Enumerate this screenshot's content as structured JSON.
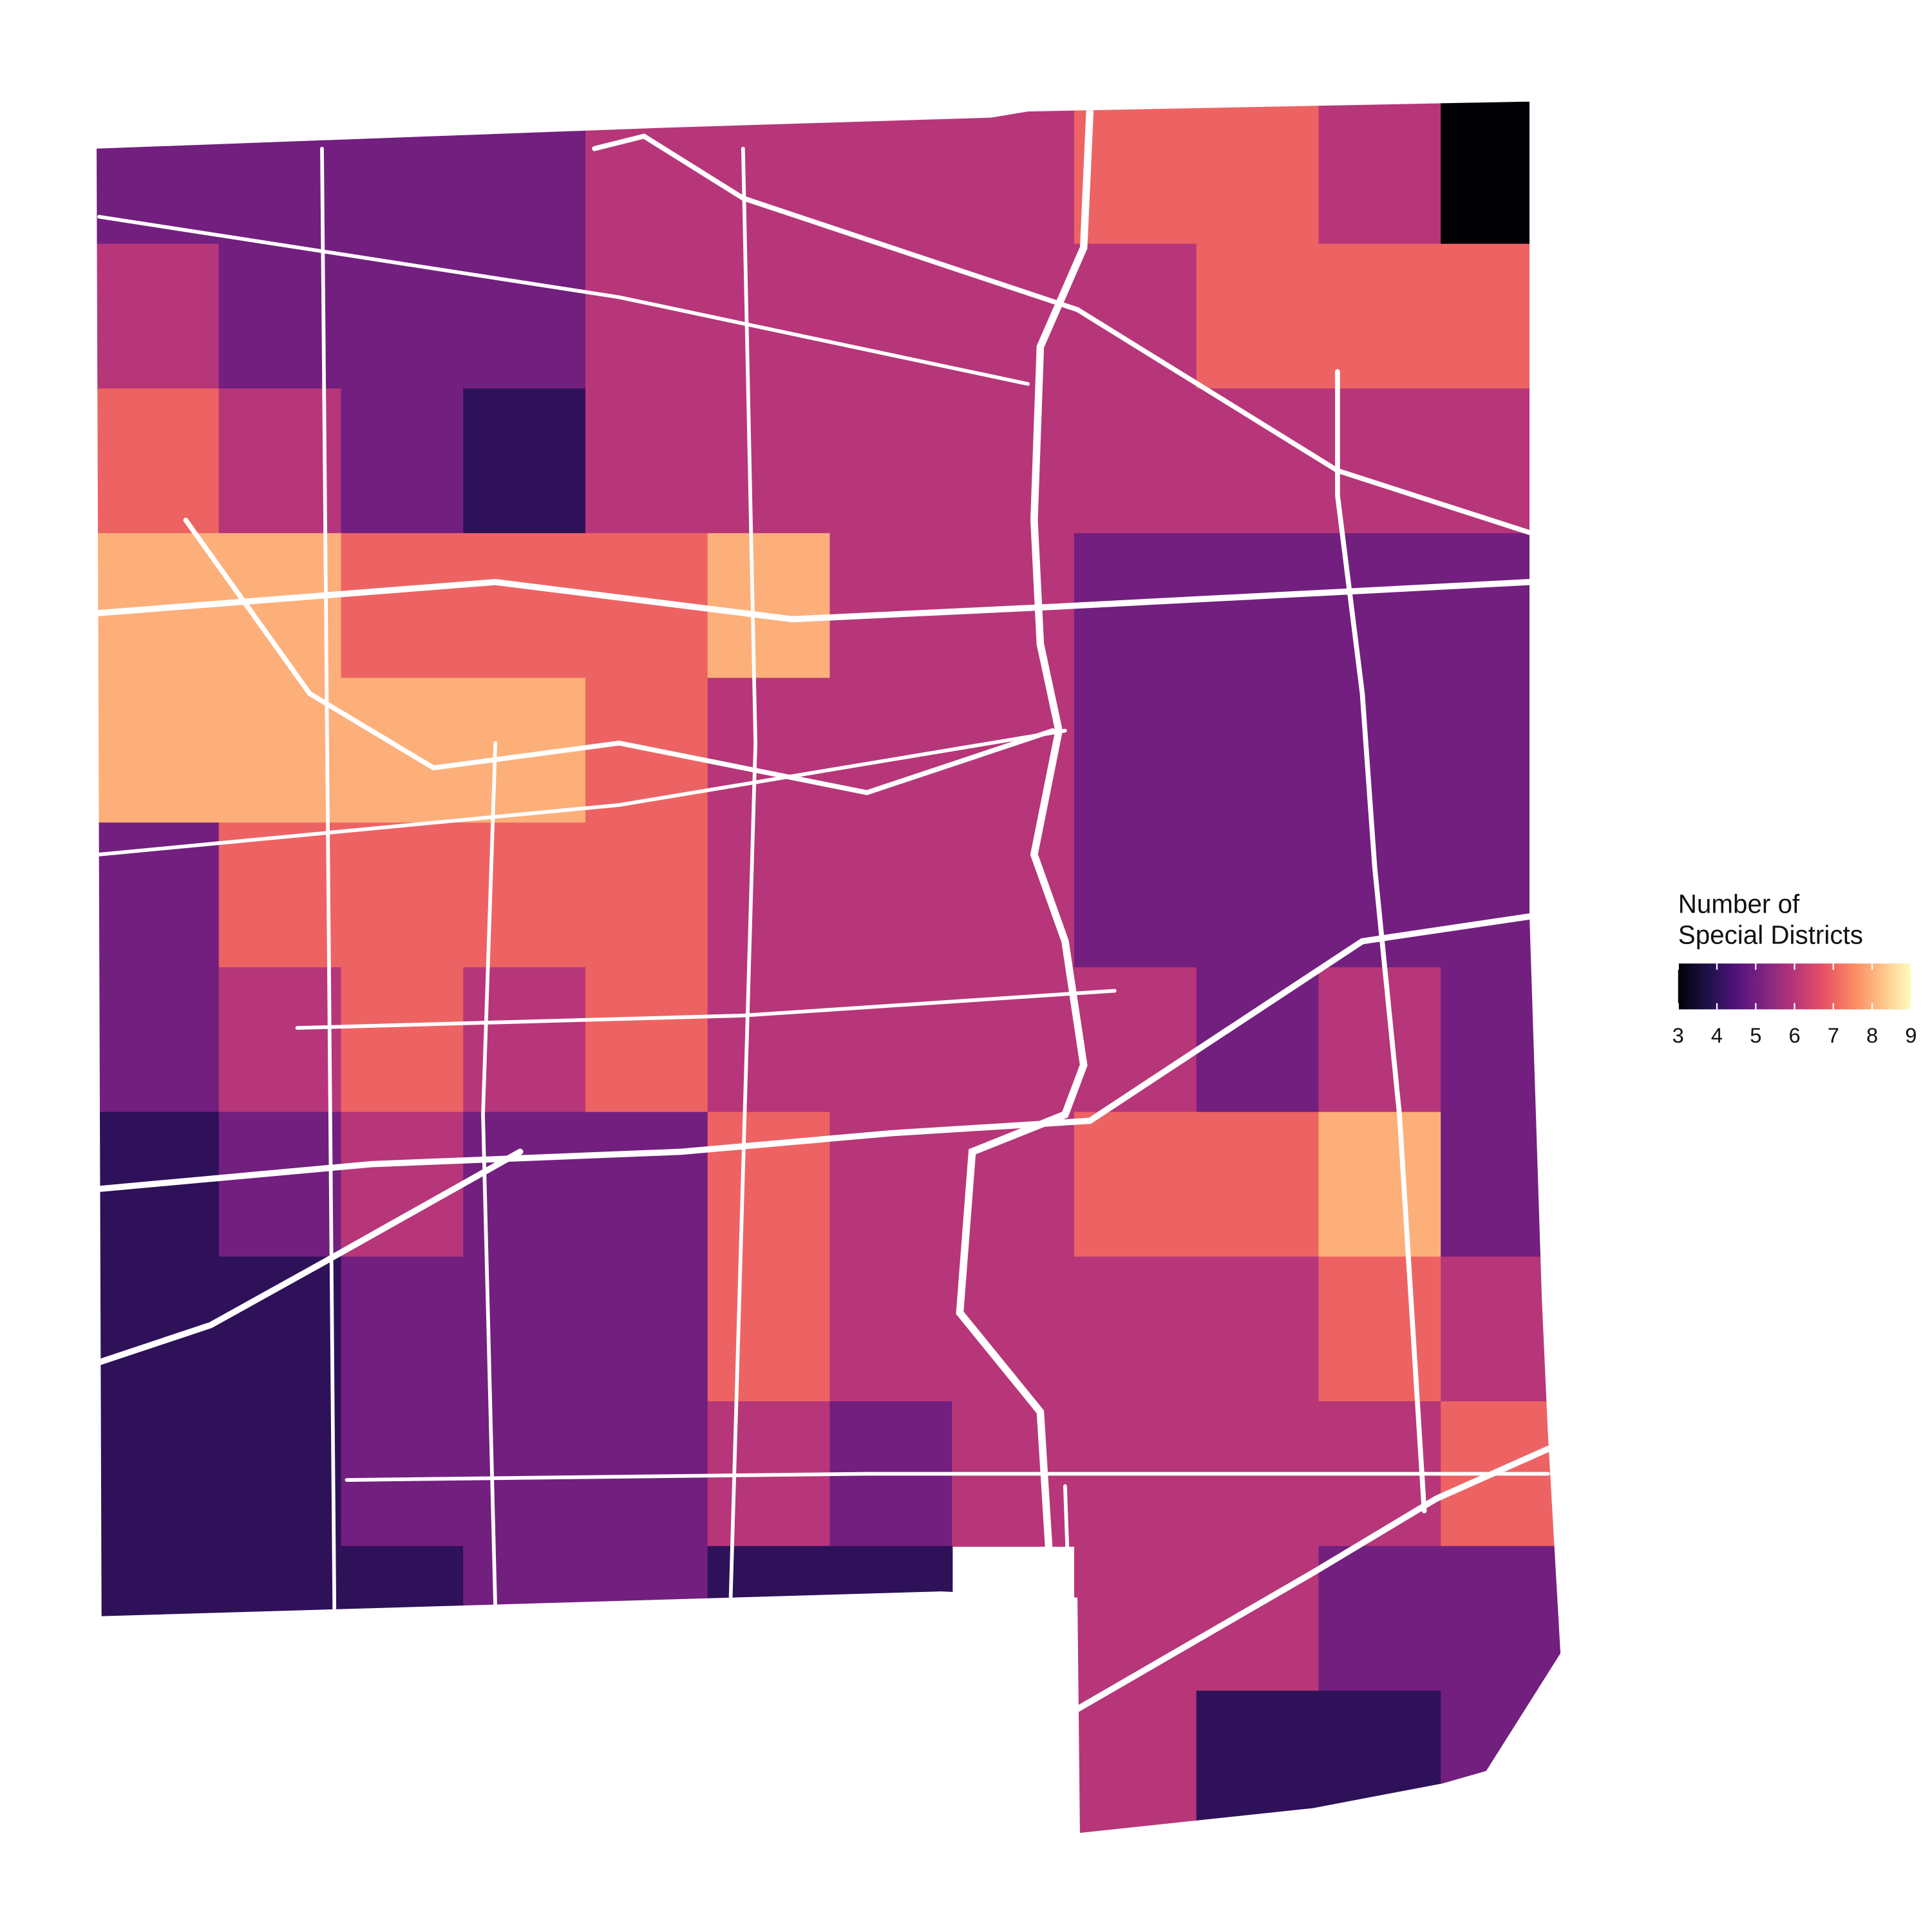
{
  "map": {
    "legend": {
      "title_lines": [
        "Number of",
        "Special Districts"
      ],
      "colorscale": [
        "#000004",
        "#1d1147",
        "#51127c",
        "#822681",
        "#b63679",
        "#e65164",
        "#fb8861",
        "#fec287",
        "#fcfdbf"
      ],
      "lim": [
        3,
        9
      ],
      "ticks": [
        3,
        4,
        5,
        6,
        7,
        8,
        9
      ]
    },
    "cells": [
      [
        5,
        5,
        5,
        5,
        6,
        6,
        6,
        6,
        7,
        7,
        6,
        3
      ],
      [
        6,
        5,
        5,
        5,
        6,
        6,
        6,
        6,
        6,
        7,
        7,
        7
      ],
      [
        7,
        6,
        5,
        4,
        6,
        6,
        6,
        6,
        6,
        6,
        6,
        6
      ],
      [
        8,
        8,
        7,
        7,
        7,
        8,
        6,
        6,
        5,
        5,
        5,
        5
      ],
      [
        8,
        8,
        8,
        8,
        7,
        6,
        6,
        6,
        5,
        5,
        5,
        5
      ],
      [
        5,
        7,
        7,
        7,
        7,
        6,
        6,
        6,
        5,
        5,
        5,
        5
      ],
      [
        5,
        6,
        7,
        6,
        7,
        6,
        6,
        6,
        6,
        5,
        6,
        5
      ],
      [
        4,
        5,
        6,
        5,
        5,
        7,
        6,
        6,
        7,
        7,
        8,
        5
      ],
      [
        4,
        4,
        5,
        5,
        5,
        7,
        6,
        6,
        6,
        6,
        7,
        6
      ],
      [
        4,
        4,
        5,
        5,
        5,
        6,
        5,
        6,
        6,
        6,
        6,
        7
      ],
      [
        4,
        4,
        4,
        5,
        5,
        4,
        4,
        null,
        6,
        6,
        5,
        5
      ],
      [
        null,
        null,
        null,
        null,
        null,
        null,
        null,
        null,
        6,
        4,
        4,
        5
      ]
    ]
  }
}
